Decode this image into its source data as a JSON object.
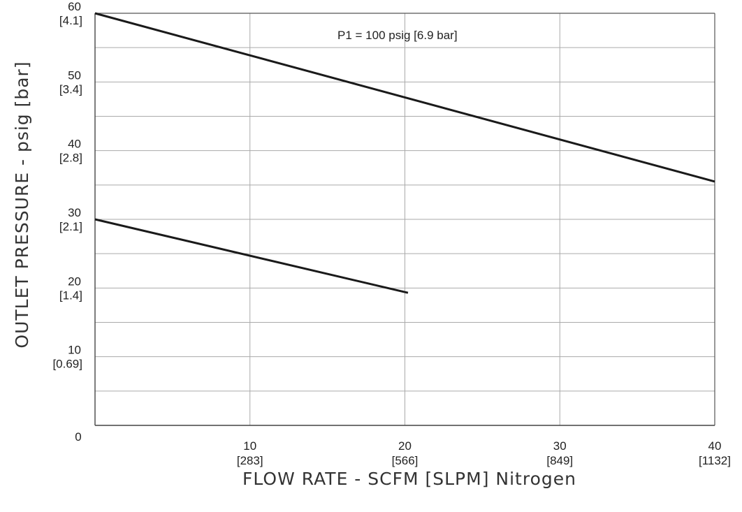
{
  "chart_data": {
    "type": "line",
    "title": "",
    "xlabel": "FLOW RATE - SCFM [SLPM] Nitrogen",
    "ylabel": "OUTLET PRESSURE - psig [bar]",
    "annotation": "P1 = 100 psig [6.9 bar]",
    "xlim": [
      0,
      40
    ],
    "ylim": [
      0,
      60
    ],
    "grid": true,
    "x_ticks": [
      {
        "value": 10,
        "label": "10",
        "sublabel": "[283]"
      },
      {
        "value": 20,
        "label": "20",
        "sublabel": "[566]"
      },
      {
        "value": 30,
        "label": "30",
        "sublabel": "[849]"
      },
      {
        "value": 40,
        "label": "40",
        "sublabel": "[1132]"
      }
    ],
    "origin_label": "0",
    "y_ticks": [
      {
        "value": 10,
        "label": "10",
        "sublabel": "[0.69]"
      },
      {
        "value": 20,
        "label": "20",
        "sublabel": "[1.4]"
      },
      {
        "value": 30,
        "label": "30",
        "sublabel": "[2.1]"
      },
      {
        "value": 40,
        "label": "40",
        "sublabel": "[2.8]"
      },
      {
        "value": 50,
        "label": "50",
        "sublabel": "[3.4]"
      },
      {
        "value": 60,
        "label": "60",
        "sublabel": "[4.1]"
      }
    ],
    "series": [
      {
        "x": [
          0,
          40
        ],
        "y": [
          60,
          35.5
        ],
        "color": "#1a1a1a"
      },
      {
        "x": [
          0,
          20.2
        ],
        "y": [
          30,
          19.3
        ],
        "color": "#1a1a1a"
      }
    ]
  }
}
